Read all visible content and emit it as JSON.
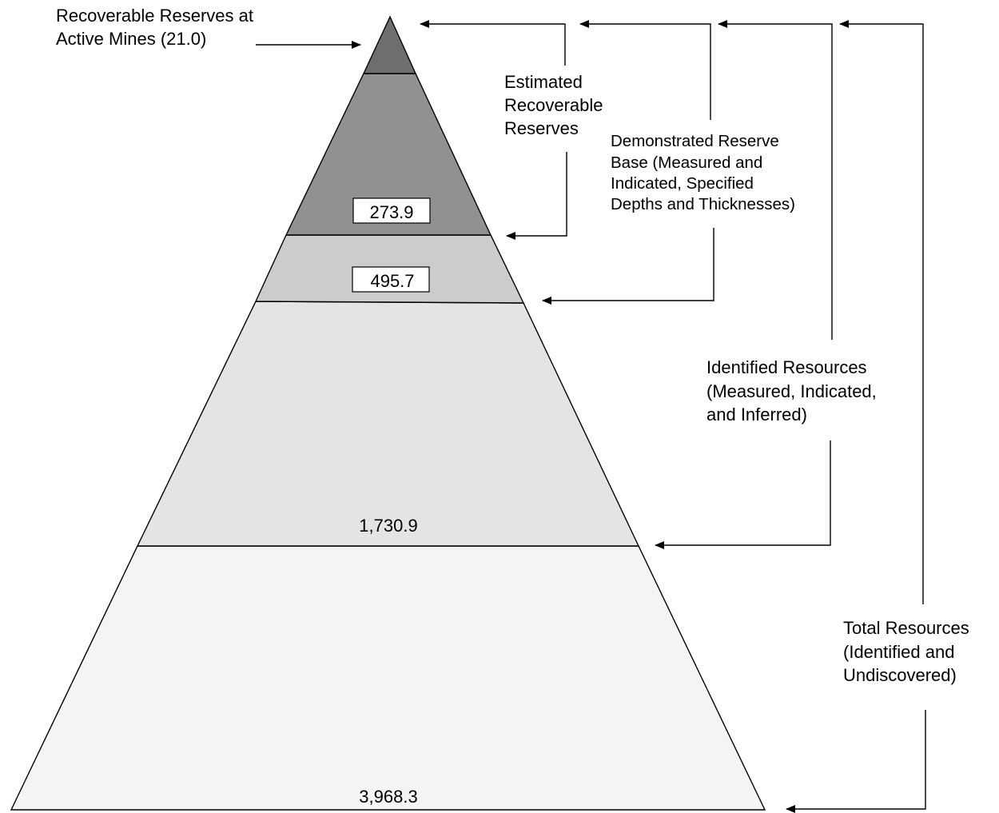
{
  "colors": {
    "tier_active": "#6e6e6e",
    "tier_recoverable": "#919191",
    "tier_demonstrated": "#cccccc",
    "tier_identified": "#e4e4e4",
    "tier_total": "#f4f4f4",
    "outline": "#000000",
    "value_box_fill": "#ffffff"
  },
  "tiers": {
    "recoverable_value": "273.9",
    "demonstrated_value": "495.7",
    "identified_value": "1,730.9",
    "total_value": "3,968.3"
  },
  "labels": {
    "active_mines": [
      "Recoverable Reserves at",
      "Active Mines (21.0)"
    ],
    "recoverable": [
      "Estimated",
      "Recoverable",
      "Reserves"
    ],
    "demonstrated": [
      "Demonstrated Reserve",
      "Base (Measured and",
      "Indicated, Specified",
      "Depths and Thicknesses)"
    ],
    "identified": [
      "Identified Resources",
      "(Measured, Indicated,",
      "and Inferred)"
    ],
    "total": [
      "Total Resources",
      "(Identified and",
      "Undiscovered)"
    ]
  }
}
